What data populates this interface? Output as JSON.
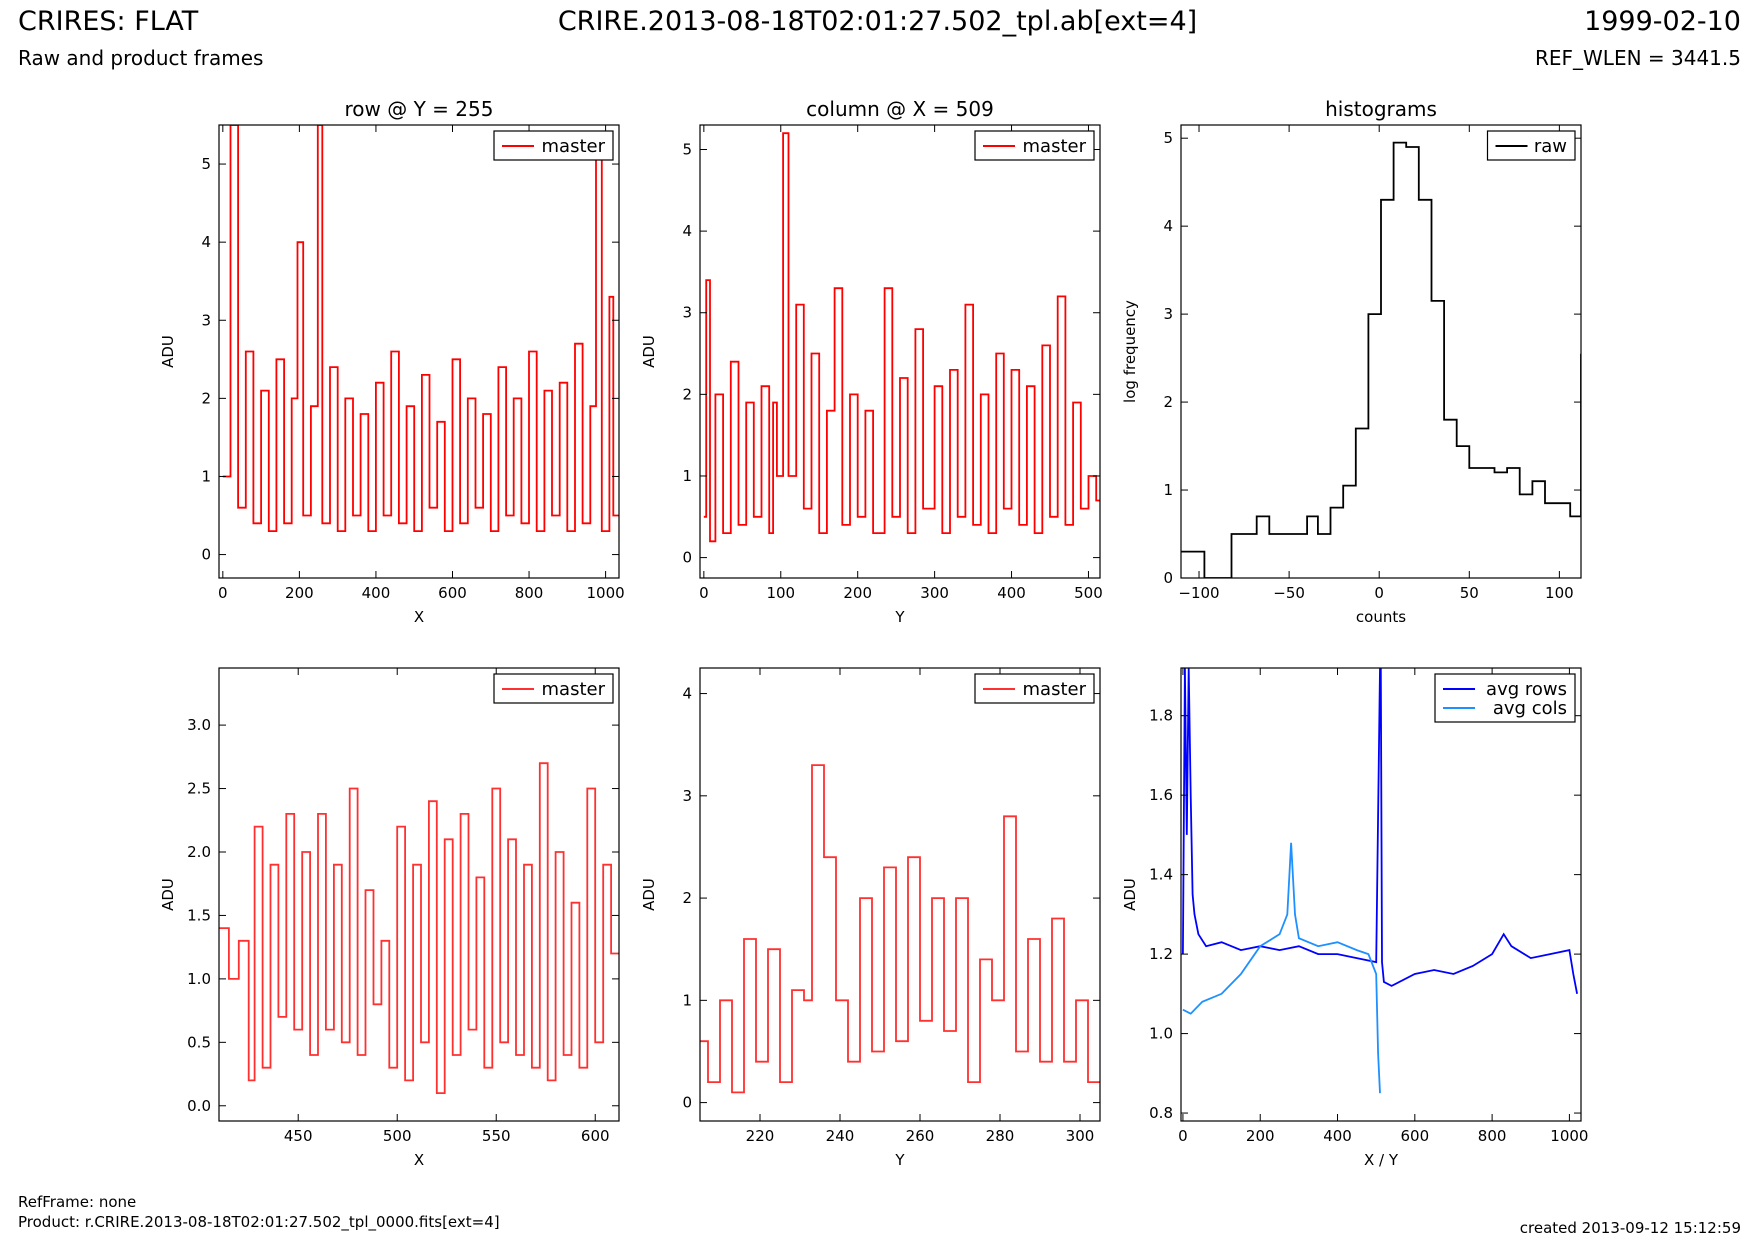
{
  "header": {
    "title": "CRIRES: FLAT",
    "subtitle": "Raw and product frames",
    "file": "CRIRE.2013-08-18T02:01:27.502_tpl.ab[ext=4]",
    "date": "1999-02-10",
    "ref_wlen": "REF_WLEN = 3441.5"
  },
  "footer": {
    "ref_frame": "RefFrame: none",
    "product": "Product: r.CRIRE.2013-08-18T02:01:27.502_tpl_0000.fits[ext=4]",
    "created": "created 2013-09-12 15:12:59"
  },
  "colors": {
    "master": "#ff0000",
    "raw": "#000000",
    "avg_rows": "#0000ff",
    "avg_cols": "#1e90ff"
  },
  "chart_data": [
    {
      "type": "line",
      "title": "row @ Y = 255",
      "xlabel": "X",
      "ylabel": "ADU",
      "xlim": [
        -10,
        1035
      ],
      "ylim": [
        -0.3,
        5.5
      ],
      "xticks": [
        0,
        200,
        400,
        600,
        800,
        1000
      ],
      "yticks": [
        0,
        1,
        2,
        3,
        4,
        5
      ],
      "legend": "top-right",
      "series": [
        {
          "name": "master",
          "color": "#ff0000",
          "step": true,
          "x": [
            0,
            20,
            40,
            60,
            80,
            100,
            120,
            140,
            160,
            180,
            195,
            210,
            230,
            248,
            260,
            280,
            300,
            320,
            340,
            360,
            380,
            400,
            420,
            440,
            460,
            480,
            500,
            520,
            540,
            560,
            580,
            600,
            620,
            640,
            660,
            680,
            700,
            720,
            740,
            760,
            780,
            800,
            820,
            840,
            860,
            880,
            900,
            920,
            940,
            960,
            975,
            990,
            1010,
            1020
          ],
          "y": [
            1.0,
            5.5,
            0.6,
            2.6,
            0.4,
            2.1,
            0.3,
            2.5,
            0.4,
            2.0,
            4.0,
            0.5,
            1.9,
            5.5,
            0.4,
            2.4,
            0.3,
            2.0,
            0.5,
            1.8,
            0.3,
            2.2,
            0.5,
            2.6,
            0.4,
            1.9,
            0.3,
            2.3,
            0.6,
            1.7,
            0.3,
            2.5,
            0.4,
            2.0,
            0.6,
            1.8,
            0.3,
            2.4,
            0.5,
            2.0,
            0.4,
            2.6,
            0.3,
            2.1,
            0.5,
            2.2,
            0.3,
            2.7,
            0.4,
            1.9,
            5.2,
            0.3,
            3.3,
            0.5
          ]
        }
      ]
    },
    {
      "type": "line",
      "title": "column @ X = 509",
      "xlabel": "Y",
      "ylabel": "ADU",
      "xlim": [
        -5,
        515
      ],
      "ylim": [
        -0.25,
        5.3
      ],
      "xticks": [
        0,
        100,
        200,
        300,
        400,
        500
      ],
      "yticks": [
        0,
        1,
        2,
        3,
        4,
        5
      ],
      "legend": "top-right",
      "series": [
        {
          "name": "master",
          "color": "#ff0000",
          "step": true,
          "x": [
            0,
            3,
            8,
            15,
            25,
            35,
            45,
            55,
            65,
            75,
            85,
            90,
            95,
            100,
            103,
            110,
            120,
            130,
            140,
            150,
            160,
            170,
            180,
            190,
            200,
            210,
            220,
            235,
            245,
            255,
            265,
            275,
            285,
            300,
            310,
            320,
            330,
            340,
            350,
            360,
            370,
            380,
            390,
            400,
            410,
            420,
            430,
            440,
            450,
            460,
            470,
            480,
            490,
            500,
            510
          ],
          "y": [
            0.5,
            3.4,
            0.2,
            2.0,
            0.3,
            2.4,
            0.4,
            1.9,
            0.5,
            2.1,
            0.3,
            1.9,
            1.0,
            1.0,
            5.2,
            1.0,
            3.1,
            0.6,
            2.5,
            0.3,
            1.8,
            3.3,
            0.4,
            2.0,
            0.5,
            1.8,
            0.3,
            3.3,
            0.5,
            2.2,
            0.3,
            2.8,
            0.6,
            2.1,
            0.3,
            2.3,
            0.5,
            3.1,
            0.4,
            2.0,
            0.3,
            2.5,
            0.6,
            2.3,
            0.4,
            2.1,
            0.3,
            2.6,
            0.5,
            3.2,
            0.4,
            1.9,
            0.6,
            1.0,
            0.7
          ]
        }
      ]
    },
    {
      "type": "line",
      "title": "histograms",
      "xlabel": "counts",
      "ylabel": "log frequency",
      "xlim": [
        -110,
        112
      ],
      "ylim": [
        0,
        5.15
      ],
      "xticks": [
        -100,
        -50,
        0,
        50,
        100
      ],
      "yticks": [
        0,
        1,
        2,
        3,
        4,
        5
      ],
      "legend": "top-right",
      "series": [
        {
          "name": "raw",
          "color": "#000000",
          "step": true,
          "x": [
            -110,
            -104,
            -97,
            -90,
            -82,
            -75,
            -68,
            -61,
            -54,
            -47,
            -40,
            -34,
            -27,
            -20,
            -13,
            -6,
            1,
            8,
            15,
            22,
            29,
            36,
            43,
            50,
            57,
            64,
            71,
            78,
            85,
            92,
            99,
            106,
            112
          ],
          "y": [
            0.3,
            0.3,
            0,
            0,
            0.5,
            0.5,
            0.7,
            0.5,
            0.5,
            0.5,
            0.7,
            0.5,
            0.8,
            1.05,
            1.7,
            3.0,
            4.3,
            4.95,
            4.9,
            4.3,
            3.15,
            1.8,
            1.5,
            1.25,
            1.25,
            1.2,
            1.25,
            0.95,
            1.1,
            0.85,
            0.85,
            0.7,
            2.55
          ]
        }
      ]
    },
    {
      "type": "line",
      "xlabel": "X",
      "ylabel": "ADU",
      "xlim": [
        410,
        612
      ],
      "ylim": [
        -0.12,
        3.45
      ],
      "xticks": [
        450,
        500,
        550,
        600
      ],
      "yticks": [
        0.0,
        0.5,
        1.0,
        1.5,
        2.0,
        2.5,
        3.0
      ],
      "legend": "top-right",
      "series": [
        {
          "name": "master",
          "color": "#ff3030",
          "step": true,
          "x": [
            410,
            415,
            420,
            425,
            428,
            432,
            436,
            440,
            444,
            448,
            452,
            456,
            460,
            464,
            468,
            472,
            476,
            480,
            484,
            488,
            492,
            496,
            500,
            504,
            508,
            512,
            516,
            520,
            524,
            528,
            532,
            536,
            540,
            544,
            548,
            552,
            556,
            560,
            564,
            568,
            572,
            576,
            580,
            584,
            588,
            592,
            596,
            600,
            604,
            608
          ],
          "y": [
            1.4,
            1.0,
            1.3,
            0.2,
            2.2,
            0.3,
            1.9,
            0.7,
            2.3,
            0.6,
            2.0,
            0.4,
            2.3,
            0.6,
            1.9,
            0.5,
            2.5,
            0.4,
            1.7,
            0.8,
            1.3,
            0.3,
            2.2,
            0.2,
            1.9,
            0.5,
            2.4,
            0.1,
            2.1,
            0.4,
            2.3,
            0.6,
            1.8,
            0.3,
            2.5,
            0.5,
            2.1,
            0.4,
            1.9,
            0.3,
            2.7,
            0.2,
            2.0,
            0.4,
            1.6,
            0.3,
            2.5,
            0.5,
            1.9,
            1.2
          ]
        }
      ]
    },
    {
      "type": "line",
      "xlabel": "Y",
      "ylabel": "ADU",
      "xlim": [
        205,
        305
      ],
      "ylim": [
        -0.18,
        4.25
      ],
      "xticks": [
        220,
        240,
        260,
        280,
        300
      ],
      "yticks": [
        0,
        1,
        2,
        3,
        4
      ],
      "legend": "top-right",
      "series": [
        {
          "name": "master",
          "color": "#ff3030",
          "step": true,
          "x": [
            205,
            207,
            210,
            213,
            216,
            219,
            222,
            225,
            228,
            231,
            233,
            236,
            239,
            242,
            245,
            248,
            251,
            254,
            257,
            260,
            263,
            266,
            269,
            272,
            275,
            278,
            281,
            284,
            287,
            290,
            293,
            296,
            299,
            302
          ],
          "y": [
            0.6,
            0.2,
            1.0,
            0.1,
            1.6,
            0.4,
            1.5,
            0.2,
            1.1,
            1.0,
            3.3,
            2.4,
            1.0,
            0.4,
            2.0,
            0.5,
            2.3,
            0.6,
            2.4,
            0.8,
            2.0,
            0.7,
            2.0,
            0.2,
            1.4,
            1.0,
            2.8,
            0.5,
            1.6,
            0.4,
            1.8,
            0.4,
            1.0,
            0.2
          ]
        }
      ]
    },
    {
      "type": "line",
      "xlabel": "X / Y",
      "ylabel": "ADU",
      "xlim": [
        -5,
        1030
      ],
      "ylim": [
        0.78,
        1.92
      ],
      "xticks": [
        0,
        200,
        400,
        600,
        800,
        1000
      ],
      "yticks": [
        0.8,
        1.0,
        1.2,
        1.4,
        1.6,
        1.8
      ],
      "legend": "top-right",
      "series": [
        {
          "name": "avg rows",
          "color": "#0000ff",
          "x": [
            0,
            5,
            10,
            15,
            20,
            25,
            30,
            40,
            60,
            100,
            150,
            200,
            250,
            300,
            350,
            400,
            450,
            500,
            510,
            512,
            515,
            520,
            540,
            600,
            650,
            700,
            750,
            800,
            830,
            850,
            900,
            950,
            1000,
            1010,
            1020
          ],
          "y": [
            1.2,
            1.92,
            1.5,
            1.92,
            1.6,
            1.35,
            1.3,
            1.25,
            1.22,
            1.23,
            1.21,
            1.22,
            1.21,
            1.22,
            1.2,
            1.2,
            1.19,
            1.18,
            1.92,
            1.92,
            1.18,
            1.13,
            1.12,
            1.15,
            1.16,
            1.15,
            1.17,
            1.2,
            1.25,
            1.22,
            1.19,
            1.2,
            1.21,
            1.15,
            1.1
          ]
        },
        {
          "name": "avg cols",
          "color": "#1e90ff",
          "x": [
            0,
            20,
            50,
            100,
            150,
            200,
            250,
            270,
            280,
            290,
            300,
            350,
            400,
            450,
            480,
            500,
            505,
            510
          ],
          "y": [
            1.06,
            1.05,
            1.08,
            1.1,
            1.15,
            1.22,
            1.25,
            1.3,
            1.48,
            1.3,
            1.24,
            1.22,
            1.23,
            1.21,
            1.2,
            1.15,
            0.95,
            0.85
          ]
        }
      ]
    }
  ]
}
